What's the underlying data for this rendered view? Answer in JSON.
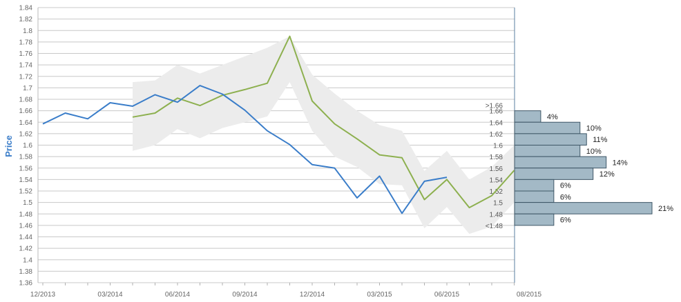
{
  "chart_data": {
    "type": "line",
    "ylabel": "Price",
    "xlabel": "",
    "ylim": [
      1.36,
      1.84
    ],
    "y_ticks": [
      "1.36",
      "1.38",
      "1.4",
      "1.42",
      "1.44",
      "1.46",
      "1.48",
      "1.5",
      "1.52",
      "1.54",
      "1.56",
      "1.58",
      "1.6",
      "1.62",
      "1.64",
      "1.66",
      "1.68",
      "1.7",
      "1.72",
      "1.74",
      "1.76",
      "1.78",
      "1.8",
      "1.82",
      "1.84"
    ],
    "x_tick_labels": [
      "12/2013",
      "03/2014",
      "06/2014",
      "09/2014",
      "12/2014",
      "03/2015",
      "06/2015",
      "08/2015"
    ],
    "grid": "horizontal",
    "colors": {
      "actual": "#3a7dc9",
      "forecast": "#8db04f",
      "band": "#ececec",
      "hist": "#a3b9c6",
      "grid": "#c8c8c8"
    },
    "series": [
      {
        "x": [
          "12/2013",
          "01/2014",
          "02/2014",
          "03/2014",
          "04/2014",
          "05/2014",
          "06/2014",
          "07/2014",
          "08/2014",
          "09/2014",
          "10/2014",
          "11/2014",
          "12/2014",
          "01/2015",
          "02/2015",
          "03/2015",
          "04/2015",
          "05/2015",
          "06/2015"
        ],
        "values": [
          1.637,
          1.656,
          1.646,
          1.674,
          1.668,
          1.688,
          1.675,
          1.704,
          1.689,
          1.661,
          1.625,
          1.601,
          1.566,
          1.56,
          1.508,
          1.546,
          1.481,
          1.537,
          1.544
        ]
      },
      {
        "x": [
          "04/2014",
          "05/2014",
          "06/2014",
          "07/2014",
          "08/2014",
          "09/2014",
          "10/2014",
          "11/2014",
          "12/2014",
          "01/2015",
          "02/2015",
          "03/2015",
          "04/2015",
          "05/2015",
          "06/2015",
          "07/2015",
          "08/2015",
          "09/2015"
        ],
        "values": [
          1.649,
          1.656,
          1.682,
          1.669,
          1.687,
          1.697,
          1.708,
          1.79,
          1.677,
          1.637,
          1.611,
          1.583,
          1.578,
          1.505,
          1.54,
          1.491,
          1.512,
          1.556
        ]
      },
      {
        "x": [
          "04/2014",
          "05/2014",
          "06/2014",
          "07/2014",
          "08/2014",
          "09/2014",
          "10/2014",
          "11/2014",
          "12/2014",
          "01/2015",
          "02/2015",
          "03/2015",
          "04/2015",
          "05/2015",
          "06/2015",
          "07/2015",
          "08/2015",
          "09/2015"
        ],
        "band_low": [
          1.59,
          1.6,
          1.628,
          1.612,
          1.63,
          1.64,
          1.65,
          1.71,
          1.625,
          1.58,
          1.562,
          1.532,
          1.53,
          1.455,
          1.492,
          1.445,
          1.458,
          1.5
        ],
        "band_high": [
          1.71,
          1.713,
          1.74,
          1.725,
          1.74,
          1.755,
          1.77,
          1.79,
          1.723,
          1.69,
          1.66,
          1.635,
          1.625,
          1.555,
          1.59,
          1.54,
          1.562,
          1.6
        ]
      }
    ],
    "histogram": {
      "bucket_labels": [
        ">1.66",
        "<1.48"
      ],
      "bins": [
        {
          "center": 1.65,
          "label": "1.66",
          "percent": "4%",
          "value": 4
        },
        {
          "center": 1.63,
          "label": "1.64",
          "percent": "10%",
          "value": 10
        },
        {
          "center": 1.61,
          "label": "1.62",
          "percent": "11%",
          "value": 11
        },
        {
          "center": 1.59,
          "label": "1.6",
          "percent": "10%",
          "value": 10
        },
        {
          "center": 1.57,
          "label": "1.58",
          "percent": "14%",
          "value": 14
        },
        {
          "center": 1.55,
          "label": "1.56",
          "percent": "12%",
          "value": 12
        },
        {
          "center": 1.53,
          "label": "1.54",
          "percent": "6%",
          "value": 6
        },
        {
          "center": 1.51,
          "label": "1.52",
          "percent": "6%",
          "value": 6
        },
        {
          "center": 1.49,
          "label": "1.5",
          "percent": "21%",
          "value": 21
        },
        {
          "center": 1.47,
          "label": "1.48",
          "percent": "6%",
          "value": 6
        }
      ]
    }
  }
}
